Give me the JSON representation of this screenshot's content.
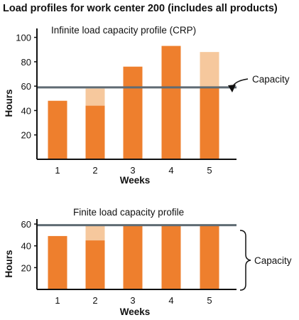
{
  "page": {
    "title": "Load profiles for work center 200 (includes all products)"
  },
  "colors": {
    "bar": "#ee7f2d",
    "overload": "#f6c89d",
    "capacity_line": "#5f6b73",
    "axis": "#111111"
  },
  "chart_data": [
    {
      "type": "bar",
      "title": "Infinite load capacity profile (CRP)",
      "xlabel": "Weeks",
      "ylabel": "Hours",
      "categories": [
        "1",
        "2",
        "3",
        "4",
        "5"
      ],
      "yticks": [
        20,
        40,
        60,
        80,
        100
      ],
      "ylim": [
        0,
        105
      ],
      "capacity": 59,
      "capacity_label": "Capacity",
      "series": [
        {
          "values": [
            48,
            44,
            76,
            93,
            59
          ]
        },
        {
          "values": [
            0,
            14,
            0,
            0,
            29
          ]
        }
      ],
      "grid": false
    },
    {
      "type": "bar",
      "title": "Finite load capacity profile",
      "xlabel": "Weeks",
      "ylabel": "Hours",
      "categories": [
        "1",
        "2",
        "3",
        "4",
        "5"
      ],
      "yticks": [
        20,
        40,
        60
      ],
      "ylim": [
        0,
        62
      ],
      "capacity": 59,
      "capacity_label": "Capacity",
      "series": [
        {
          "values": [
            49,
            45,
            59,
            59,
            59
          ]
        },
        {
          "values": [
            0,
            14,
            0,
            0,
            0
          ]
        }
      ],
      "grid": false
    }
  ]
}
